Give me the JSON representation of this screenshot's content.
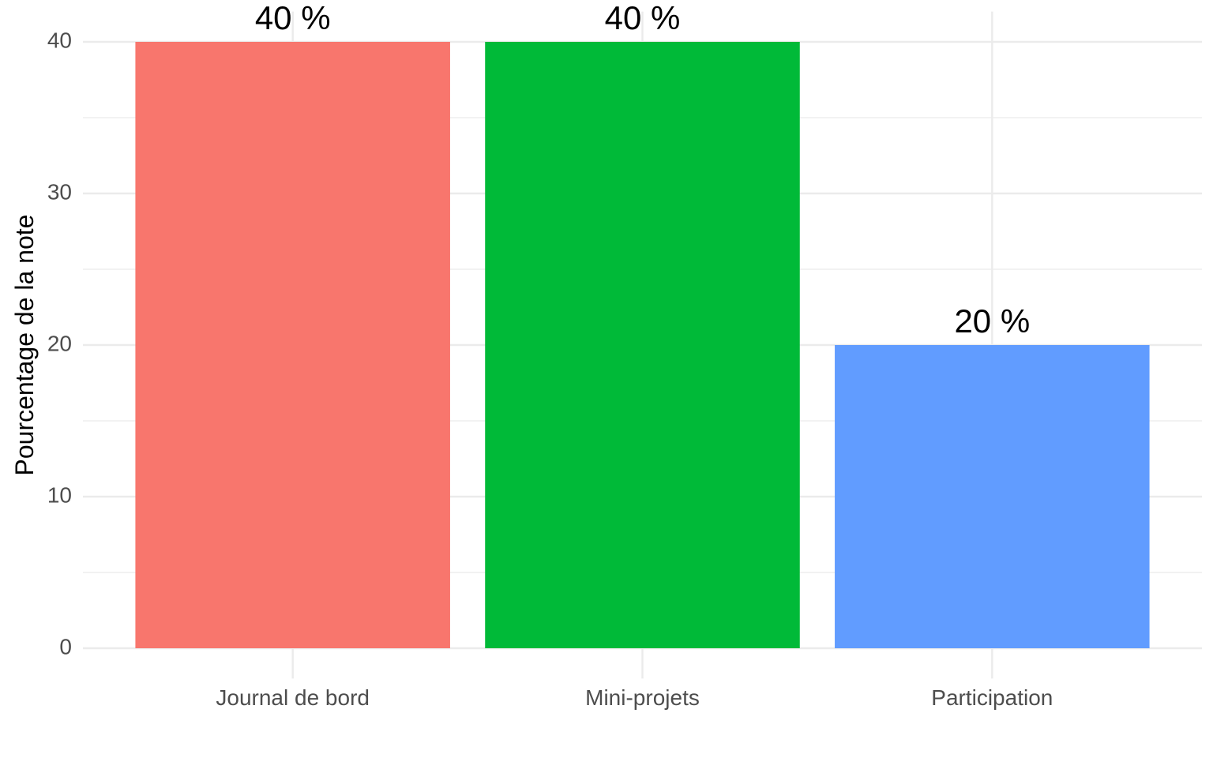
{
  "chart_data": {
    "type": "bar",
    "y_axis_label": "Pourcentage de la note",
    "categories": [
      "Journal de bord",
      "Mini-projets",
      "Participation"
    ],
    "values": [
      40,
      40,
      20
    ],
    "value_labels": [
      "40 %",
      "40 %",
      "20 %"
    ],
    "colors": [
      "#f8766d",
      "#00ba38",
      "#619cff"
    ],
    "ylim": [
      -2,
      42
    ],
    "yticks": [
      0,
      10,
      20,
      30,
      40
    ],
    "minor_yticks": [
      5,
      15,
      25,
      35
    ],
    "grid": true
  }
}
